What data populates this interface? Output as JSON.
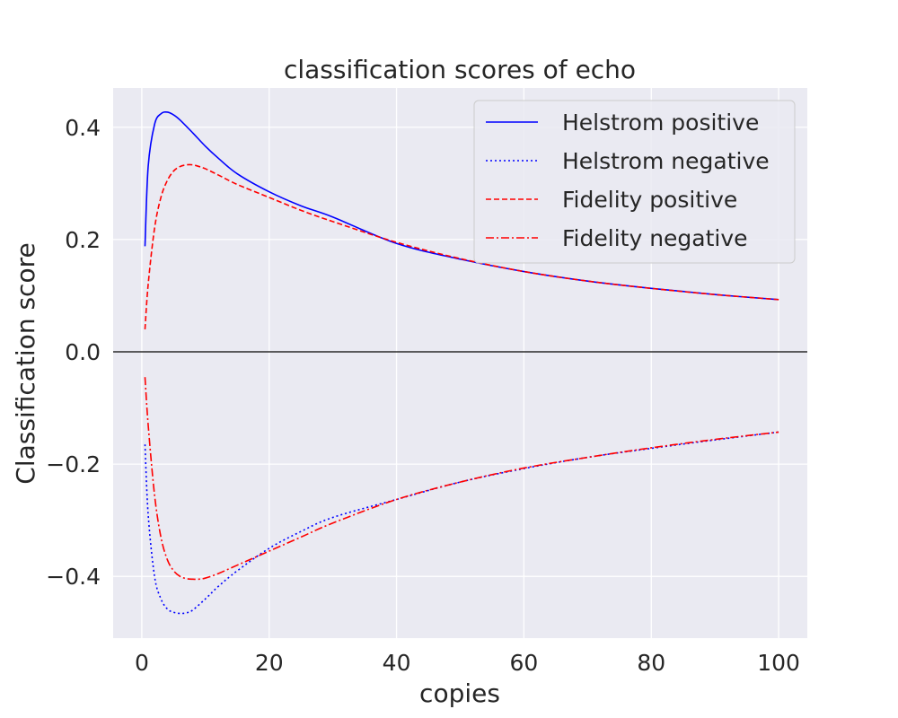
{
  "chart_data": {
    "type": "line",
    "title": "classification scores of echo",
    "xlabel": "copies",
    "ylabel": "Classification score",
    "xlim": [
      -4.5,
      104.5
    ],
    "ylim": [
      -0.51,
      0.47
    ],
    "xticks": [
      0,
      20,
      40,
      60,
      80,
      100
    ],
    "xtick_labels": [
      "0",
      "20",
      "40",
      "60",
      "80",
      "100"
    ],
    "yticks": [
      -0.4,
      -0.2,
      0.0,
      0.2,
      0.4
    ],
    "ytick_labels": [
      "−0.4",
      "−0.2",
      "0.0",
      "0.2",
      "0.4"
    ],
    "grid": true,
    "zero_line": true,
    "legend_position": "top-right",
    "series": [
      {
        "name": "Helstrom positive",
        "color": "#0000ff",
        "linestyle": "solid",
        "x": [
          0.5,
          1,
          2,
          3,
          4,
          5,
          6,
          8,
          10,
          12,
          15,
          20,
          25,
          30,
          40,
          50,
          60,
          70,
          80,
          90,
          100
        ],
        "y": [
          0.188,
          0.33,
          0.405,
          0.424,
          0.427,
          0.422,
          0.413,
          0.39,
          0.366,
          0.345,
          0.317,
          0.285,
          0.26,
          0.24,
          0.193,
          0.165,
          0.143,
          0.126,
          0.113,
          0.102,
          0.093
        ]
      },
      {
        "name": "Helstrom negative",
        "color": "#0000ff",
        "linestyle": "dotted",
        "x": [
          0.5,
          1,
          2,
          3,
          4,
          5,
          6,
          7,
          8,
          10,
          12,
          15,
          20,
          25,
          30,
          40,
          50,
          60,
          70,
          80,
          90,
          100
        ],
        "y": [
          -0.165,
          -0.29,
          -0.4,
          -0.44,
          -0.458,
          -0.464,
          -0.466,
          -0.465,
          -0.46,
          -0.44,
          -0.418,
          -0.39,
          -0.35,
          -0.32,
          -0.295,
          -0.263,
          -0.232,
          -0.208,
          -0.188,
          -0.172,
          -0.157,
          -0.143
        ]
      },
      {
        "name": "Fidelity positive",
        "color": "#ff0000",
        "linestyle": "dashed",
        "x": [
          0.5,
          1,
          2,
          3,
          4,
          5,
          6,
          7,
          8,
          9,
          10,
          12,
          15,
          20,
          25,
          30,
          40,
          50,
          60,
          70,
          80,
          90,
          100
        ],
        "y": [
          0.04,
          0.12,
          0.22,
          0.275,
          0.305,
          0.322,
          0.33,
          0.333,
          0.333,
          0.33,
          0.326,
          0.315,
          0.298,
          0.275,
          0.252,
          0.232,
          0.195,
          0.166,
          0.143,
          0.126,
          0.113,
          0.102,
          0.093
        ]
      },
      {
        "name": "Fidelity negative",
        "color": "#ff0000",
        "linestyle": "dashdot",
        "x": [
          0.5,
          1,
          2,
          3,
          4,
          5,
          6,
          7,
          8,
          9,
          10,
          12,
          15,
          20,
          25,
          30,
          40,
          50,
          60,
          70,
          80,
          90,
          100
        ],
        "y": [
          -0.045,
          -0.13,
          -0.255,
          -0.33,
          -0.37,
          -0.39,
          -0.4,
          -0.404,
          -0.405,
          -0.405,
          -0.403,
          -0.395,
          -0.38,
          -0.355,
          -0.33,
          -0.305,
          -0.263,
          -0.232,
          -0.207,
          -0.188,
          -0.171,
          -0.156,
          -0.143
        ]
      }
    ]
  }
}
